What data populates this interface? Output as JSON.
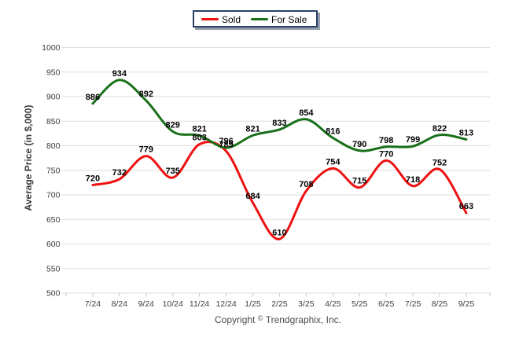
{
  "chart_data": {
    "type": "line",
    "x_categories": [
      "7/24",
      "8/24",
      "9/24",
      "10/24",
      "11/24",
      "12/24",
      "1/25",
      "2/25",
      "3/25",
      "4/25",
      "5/25",
      "6/25",
      "7/25",
      "8/25",
      "9/25"
    ],
    "series": [
      {
        "name": "Sold",
        "color": "#ee1111",
        "values": [
          720,
          732,
          779,
          735,
          803,
          789,
          684,
          610,
          708,
          754,
          715,
          770,
          718,
          752,
          663
        ]
      },
      {
        "name": "For Sale",
        "color": "#1a701a",
        "values": [
          886,
          934,
          892,
          829,
          821,
          796,
          821,
          833,
          854,
          816,
          790,
          798,
          799,
          822,
          813
        ]
      }
    ],
    "ylabel": "Average Price (in $,000)",
    "ylim": [
      500,
      1000
    ],
    "ytick_step": 50,
    "yticks": [
      1000,
      950,
      900,
      850,
      800,
      750,
      700,
      650,
      600,
      550,
      500
    ],
    "grid": true,
    "gridline_color": "#dedede",
    "tick_color": "#c9c9c9",
    "axis_text_color": "#3c3c3c",
    "data_label_color": "#000000",
    "legend_position": "top-center",
    "legend_border_color": "#2a4168",
    "smooth": true,
    "data_labels": true
  },
  "footer": {
    "copyright_prefix": "Copyright",
    "copyright_symbol": "©",
    "copyright_suffix": "Trendgraphix, Inc."
  }
}
